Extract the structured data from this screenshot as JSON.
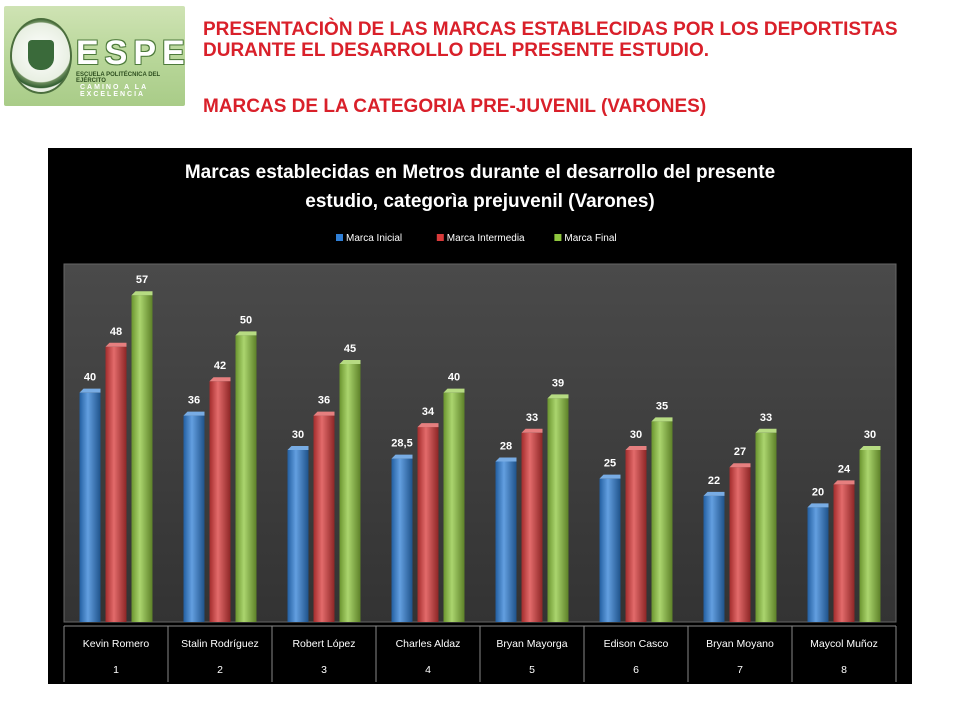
{
  "header": {
    "title": "PRESENTACIÒN DE LAS MARCAS ESTABLECIDAS POR LOS DEPORTISTAS DURANTE EL DESARROLLO DEL PRESENTE ESTUDIO.",
    "subtitle": "MARCAS DE LA CATEGORIA PRE-JUVENIL (VARONES)"
  },
  "logo": {
    "letters": "ESPE",
    "line1": "ESCUELA POLITÉCNICA DEL EJÉRCITO",
    "line2": "CAMINO A LA EXCELENCIA"
  },
  "chart_data": {
    "type": "bar",
    "title": "Marcas establecidas en Metros durante el desarrollo del presente estudio, categorìa prejuvenil (Varones)",
    "legend_position": "top",
    "grid": false,
    "ylim": [
      0,
      60
    ],
    "categories": [
      "Kevin Romero",
      "Stalin Rodríguez",
      "Robert López",
      "Charles Aldaz",
      "Bryan Mayorga",
      "Edison Casco",
      "Bryan Moyano",
      "Maycol Muñoz"
    ],
    "category_numbers": [
      "1",
      "2",
      "3",
      "4",
      "5",
      "6",
      "7",
      "8"
    ],
    "series": [
      {
        "name": "Marca Inicial",
        "color": "#2f7fd6",
        "values": [
          40,
          36,
          30,
          28.5,
          28,
          25,
          22,
          20
        ],
        "labels": [
          "40",
          "36",
          "30",
          "28,5",
          "28",
          "25",
          "22",
          "20"
        ]
      },
      {
        "name": "Marca Intermedia",
        "color": "#d93a3a",
        "values": [
          48,
          42,
          36,
          34,
          33,
          30,
          27,
          24
        ],
        "labels": [
          "48",
          "42",
          "36",
          "34",
          "33",
          "30",
          "27",
          "24"
        ]
      },
      {
        "name": "Marca Final",
        "color": "#8fc73e",
        "values": [
          57,
          50,
          45,
          40,
          39,
          35,
          33,
          30
        ],
        "labels": [
          "57",
          "50",
          "45",
          "40",
          "39",
          "35",
          "33",
          "30"
        ]
      }
    ]
  }
}
